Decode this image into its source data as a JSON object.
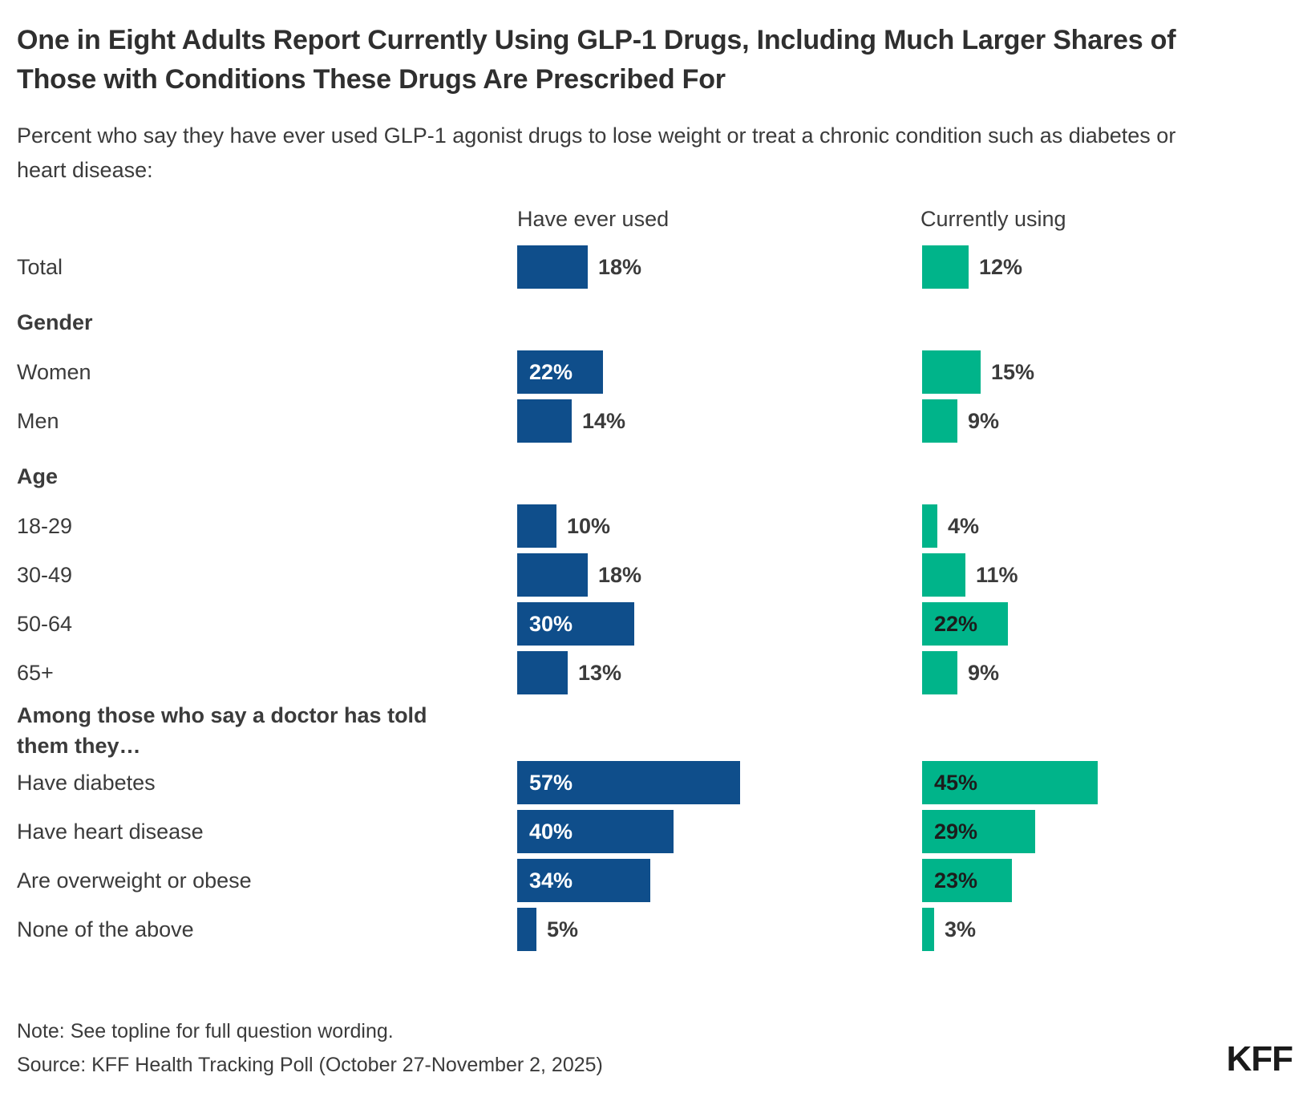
{
  "title": "One in Eight Adults Report Currently Using GLP-1 Drugs, Including Much Larger Shares of Those with Conditions These Drugs Are Prescribed For",
  "subtitle": "Percent who say they have ever used GLP-1 agonist drugs to lose weight or treat a chronic condition such as diabetes or heart disease:",
  "note": "Note: See topline for full question wording.",
  "source": "Source: KFF Health Tracking Poll (October 27-November 2, 2025)",
  "logo": "KFF",
  "chart_data": {
    "type": "bar",
    "orientation": "horizontal",
    "value_suffix": "%",
    "xlim": [
      0,
      100
    ],
    "grid": false,
    "legend_position": "column-headers-top",
    "series": [
      {
        "name": "Have ever used",
        "color": "#0F4E8B"
      },
      {
        "name": "Currently using",
        "color": "#00B48A"
      }
    ],
    "rows": [
      {
        "kind": "bar",
        "label": "Total",
        "values": [
          18,
          12
        ]
      },
      {
        "kind": "section",
        "label": "Gender"
      },
      {
        "kind": "bar",
        "label": "Women",
        "values": [
          22,
          15
        ]
      },
      {
        "kind": "bar",
        "label": "Men",
        "values": [
          14,
          9
        ]
      },
      {
        "kind": "section",
        "label": "Age"
      },
      {
        "kind": "bar",
        "label": "18-29",
        "values": [
          10,
          4
        ]
      },
      {
        "kind": "bar",
        "label": "30-49",
        "values": [
          18,
          11
        ]
      },
      {
        "kind": "bar",
        "label": "50-64",
        "values": [
          30,
          22
        ]
      },
      {
        "kind": "bar",
        "label": "65+",
        "values": [
          13,
          9
        ]
      },
      {
        "kind": "section",
        "label": "Among those who say a doctor has told them they…"
      },
      {
        "kind": "bar",
        "label": "Have diabetes",
        "values": [
          57,
          45
        ]
      },
      {
        "kind": "bar",
        "label": "Have heart disease",
        "values": [
          40,
          29
        ]
      },
      {
        "kind": "bar",
        "label": "Are overweight or obese",
        "values": [
          34,
          23
        ]
      },
      {
        "kind": "bar",
        "label": "None of the above",
        "values": [
          5,
          3
        ]
      }
    ]
  }
}
